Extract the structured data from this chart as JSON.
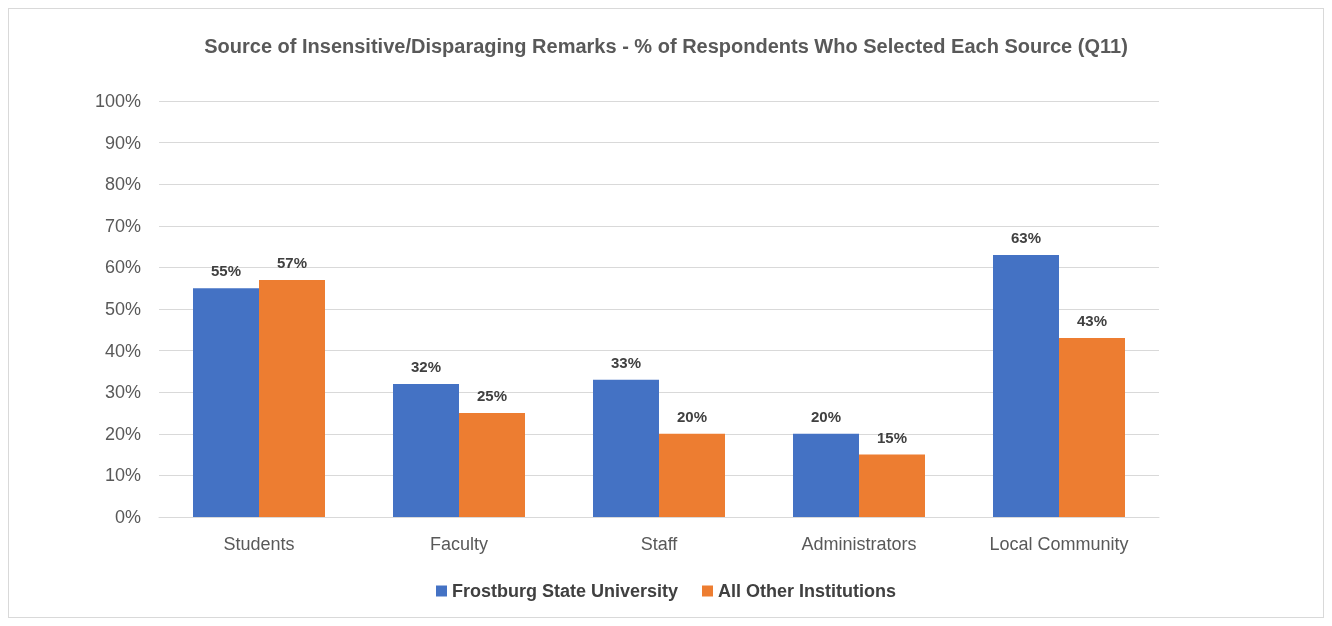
{
  "chart_data": {
    "type": "bar",
    "title": "Source of Insensitive/Disparaging Remarks - % of Respondents Who Selected Each Source (Q11)",
    "categories": [
      "Students",
      "Faculty",
      "Staff",
      "Administrators",
      "Local Community"
    ],
    "series": [
      {
        "name": "Frostburg State University",
        "color": "#4472c4",
        "values": [
          55,
          32,
          33,
          20,
          63
        ],
        "value_labels": [
          "55%",
          "32%",
          "33%",
          "20%",
          "63%"
        ]
      },
      {
        "name": "All Other Institutions",
        "color": "#ed7d31",
        "values": [
          57,
          25,
          20,
          15,
          43
        ],
        "value_labels": [
          "57%",
          "25%",
          "20%",
          "15%",
          "43%"
        ]
      }
    ],
    "ylim": [
      0,
      100
    ],
    "yticks": [
      {
        "value": 0,
        "label": "0%"
      },
      {
        "value": 10,
        "label": "10%"
      },
      {
        "value": 20,
        "label": "20%"
      },
      {
        "value": 30,
        "label": "30%"
      },
      {
        "value": 40,
        "label": "40%"
      },
      {
        "value": 50,
        "label": "50%"
      },
      {
        "value": 60,
        "label": "60%"
      },
      {
        "value": 70,
        "label": "70%"
      },
      {
        "value": 80,
        "label": "80%"
      },
      {
        "value": 90,
        "label": "90%"
      },
      {
        "value": 100,
        "label": "100%"
      }
    ],
    "grid": "y",
    "legend": "bottom"
  }
}
